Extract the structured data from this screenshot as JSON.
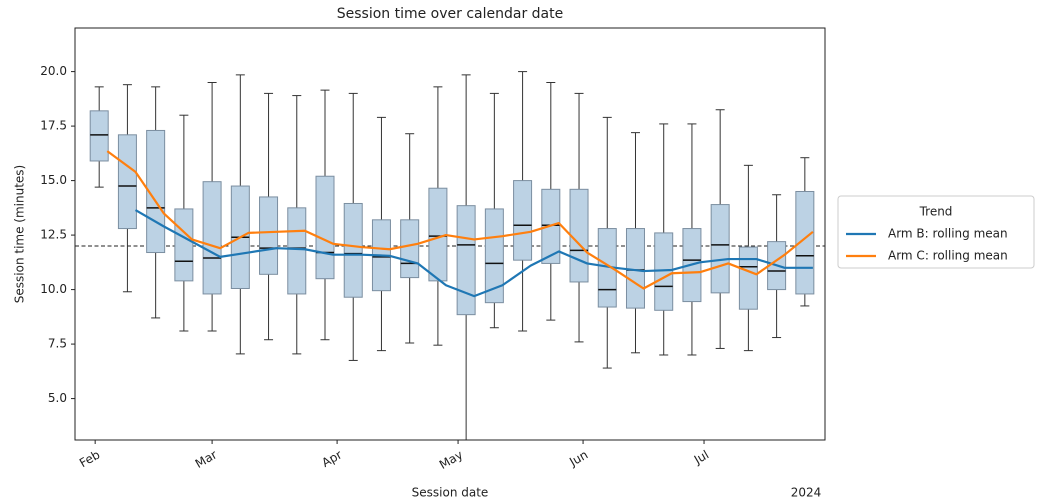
{
  "chart_data": {
    "type": "box",
    "title": "Session time over calendar date",
    "x_label": "Session date",
    "y_label": "Session time (minutes)",
    "x_offset_label": "2024",
    "xlim": [
      "2024-01-27",
      "2024-07-31"
    ],
    "xticks": [
      {
        "value": "2024-02-01",
        "label": "Feb"
      },
      {
        "value": "2024-03-01",
        "label": "Mar"
      },
      {
        "value": "2024-04-01",
        "label": "Apr"
      },
      {
        "value": "2024-05-01",
        "label": "May"
      },
      {
        "value": "2024-06-01",
        "label": "Jun"
      },
      {
        "value": "2024-07-01",
        "label": "Jul"
      }
    ],
    "ylim": [
      3.1,
      22.0
    ],
    "yticks": [
      {
        "value": 5,
        "label": "5.0"
      },
      7.5,
      {
        "value": 10,
        "label": "10.0"
      },
      12.5,
      {
        "value": 15,
        "label": "15.0"
      },
      17.5,
      {
        "value": 20,
        "label": "20.0"
      }
    ],
    "reference_line": 12.0,
    "box_color": "#bcd2e4",
    "boxes": {
      "x": [
        "2024-02-02",
        "2024-02-09",
        "2024-02-16",
        "2024-02-23",
        "2024-03-01",
        "2024-03-08",
        "2024-03-15",
        "2024-03-22",
        "2024-03-29",
        "2024-04-05",
        "2024-04-12",
        "2024-04-19",
        "2024-04-26",
        "2024-05-03",
        "2024-05-10",
        "2024-05-17",
        "2024-05-24",
        "2024-05-31",
        "2024-06-07",
        "2024-06-14",
        "2024-06-21",
        "2024-06-28",
        "2024-07-05",
        "2024-07-12",
        "2024-07-19",
        "2024-07-26"
      ],
      "whisker_high": [
        19.3,
        19.4,
        19.3,
        18.0,
        19.5,
        19.85,
        19.0,
        18.9,
        19.15,
        19.0,
        17.9,
        17.15,
        19.3,
        19.85,
        19.0,
        20.0,
        19.5,
        19.0,
        17.9,
        17.2,
        17.6,
        17.6,
        18.25,
        15.7,
        14.35,
        16.05
      ],
      "q3": [
        18.2,
        17.1,
        17.3,
        13.7,
        14.95,
        14.75,
        14.25,
        13.75,
        15.2,
        13.95,
        13.2,
        13.2,
        14.65,
        13.85,
        13.7,
        15.0,
        14.6,
        14.6,
        12.8,
        12.8,
        12.6,
        12.8,
        13.9,
        11.95,
        12.2,
        14.5
      ],
      "median": [
        17.1,
        14.75,
        13.75,
        11.3,
        11.45,
        12.4,
        11.9,
        11.9,
        11.7,
        11.65,
        11.5,
        11.2,
        12.45,
        12.05,
        11.2,
        12.95,
        12.95,
        11.8,
        10.0,
        10.9,
        10.15,
        11.35,
        12.05,
        11.05,
        10.85,
        11.55
      ],
      "q1": [
        15.9,
        12.8,
        11.7,
        10.4,
        9.8,
        10.05,
        10.7,
        9.8,
        10.5,
        9.65,
        9.95,
        10.55,
        10.4,
        8.85,
        9.4,
        11.35,
        11.2,
        10.35,
        9.2,
        9.15,
        9.05,
        9.45,
        9.85,
        9.1,
        10.0,
        9.8
      ],
      "whisker_low": [
        14.7,
        9.9,
        8.7,
        8.1,
        8.1,
        7.05,
        7.7,
        7.05,
        7.7,
        6.75,
        7.2,
        7.55,
        7.45,
        2.5,
        8.25,
        8.1,
        8.6,
        7.6,
        6.4,
        7.1,
        7.0,
        7.0,
        7.3,
        7.2,
        7.8,
        9.25
      ]
    },
    "legend_title": "Trend",
    "legend_position": "outside right",
    "series": [
      {
        "name": "Arm B: rolling mean",
        "color": "#1f77b4",
        "x": [
          "2024-02-04",
          "2024-02-11",
          "2024-02-18",
          "2024-02-25",
          "2024-03-03",
          "2024-03-10",
          "2024-03-17",
          "2024-03-24",
          "2024-03-31",
          "2024-04-07",
          "2024-04-14",
          "2024-04-21",
          "2024-04-28",
          "2024-05-05",
          "2024-05-12",
          "2024-05-19",
          "2024-05-26",
          "2024-06-02",
          "2024-06-09",
          "2024-06-16",
          "2024-06-23",
          "2024-06-30",
          "2024-07-07",
          "2024-07-14",
          "2024-07-21",
          "2024-07-28"
        ],
        "values": [
          null,
          13.65,
          12.9,
          12.2,
          11.5,
          11.7,
          11.9,
          11.85,
          11.6,
          11.6,
          11.55,
          11.2,
          10.2,
          9.7,
          10.2,
          11.1,
          11.75,
          11.2,
          11.0,
          10.85,
          10.9,
          11.25,
          11.4,
          11.4,
          11.0,
          11.0
        ]
      },
      {
        "name": "Arm C: rolling mean",
        "color": "#ff7f0e",
        "x": [
          "2024-02-04",
          "2024-02-11",
          "2024-02-18",
          "2024-02-25",
          "2024-03-03",
          "2024-03-10",
          "2024-03-17",
          "2024-03-24",
          "2024-03-31",
          "2024-04-07",
          "2024-04-14",
          "2024-04-21",
          "2024-04-28",
          "2024-05-05",
          "2024-05-12",
          "2024-05-19",
          "2024-05-26",
          "2024-06-02",
          "2024-06-09",
          "2024-06-16",
          "2024-06-23",
          "2024-06-30",
          "2024-07-07",
          "2024-07-14",
          "2024-07-21",
          "2024-07-28"
        ],
        "values": [
          16.35,
          15.4,
          13.5,
          12.3,
          11.9,
          12.6,
          12.65,
          12.7,
          12.1,
          11.95,
          11.85,
          12.1,
          12.5,
          12.3,
          12.45,
          12.65,
          13.05,
          11.7,
          10.9,
          10.05,
          10.75,
          10.8,
          11.2,
          10.7,
          11.6,
          12.65
        ]
      }
    ]
  }
}
